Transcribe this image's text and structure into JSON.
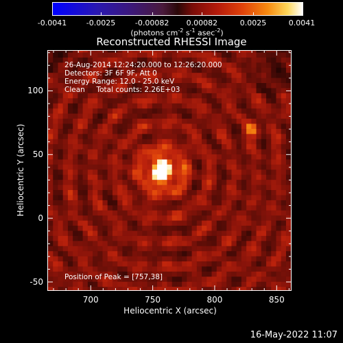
{
  "colorbar": {
    "tick_labels": [
      "-0.0041",
      "-0.0025",
      "-0.00082",
      "0.00082",
      "0.0025",
      "0.0041"
    ],
    "tick_values": [
      -0.0041,
      -0.0025,
      -0.00082,
      0.00082,
      0.0025,
      0.0041
    ],
    "range": [
      -0.0041,
      0.0041
    ],
    "units_prefix": "(photons cm",
    "units_exp1": "-2",
    "units_mid1": " s",
    "units_exp2": "-1",
    "units_mid2": " asec",
    "units_exp3": "-2",
    "units_suffix": ")",
    "colors": [
      "#0000ff",
      "#3a1880",
      "#2a0808",
      "#b51b0b",
      "#f78a10",
      "#ffffff"
    ]
  },
  "header": {
    "line1": "26-Aug-2014 12:24:20.000 to 12:26:20.000",
    "line2": "Detectors: 3F 6F 9F, Att 0",
    "line3": "Energy Range: 12.0 - 25.0 keV",
    "line4": "Clean     Total counts: 2.26E+03"
  },
  "peak_text": "Position of Peak = [757,38]",
  "timestamp": "16-May-2022 11:07",
  "chart_data": {
    "type": "heatmap",
    "title": "Reconstructed RHESSI Image",
    "xlabel": "Heliocentric X (arcsec)",
    "ylabel": "Heliocentric Y (arcsec)",
    "xlim": [
      665,
      862
    ],
    "ylim": [
      -57,
      132
    ],
    "xticks": [
      700,
      750,
      800,
      850
    ],
    "yticks": [
      -50,
      0,
      50,
      100
    ],
    "xtick_labels": [
      "700",
      "750",
      "800",
      "850"
    ],
    "ytick_labels": [
      "-50",
      "0",
      "50",
      "100"
    ],
    "peak": [
      757,
      38
    ],
    "secondary_source": [
      830,
      70
    ],
    "pixel_size_arcsec": 4,
    "grid": false
  }
}
